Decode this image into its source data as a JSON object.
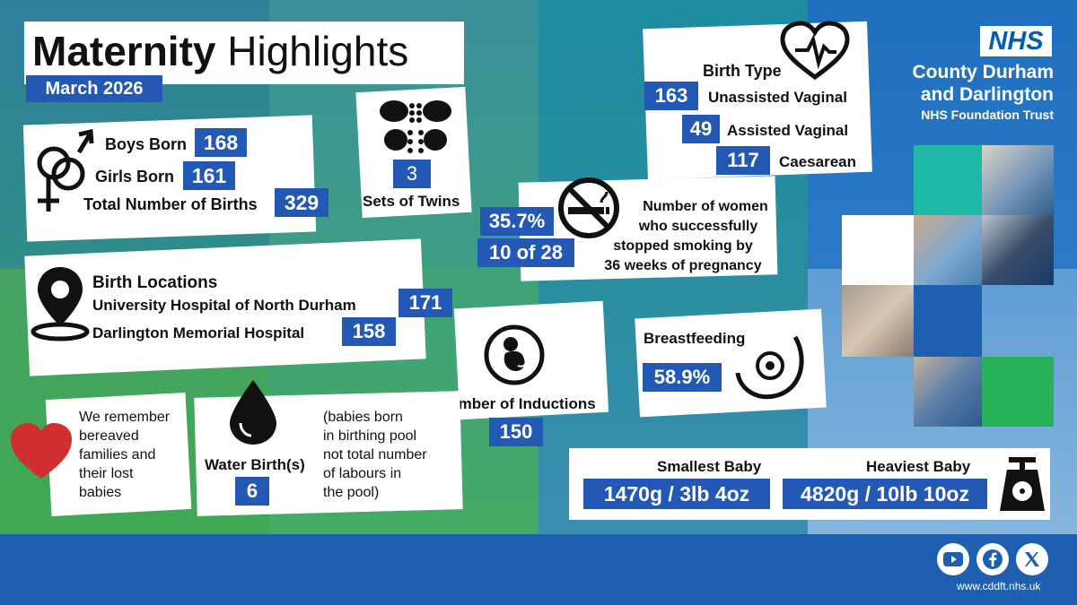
{
  "header": {
    "title_bold": "Maternity",
    "title_light": "Highlights",
    "date": "March 2026"
  },
  "births": {
    "boys_label": "Boys Born",
    "boys": "168",
    "girls_label": "Girls Born",
    "girls": "161",
    "total_label": "Total Number of Births",
    "total": "329",
    "icon": "gender-symbols-icon"
  },
  "twins": {
    "value": "3",
    "label": "Sets of Twins",
    "icon": "footprints-icon"
  },
  "birth_type": {
    "title": "Birth Type",
    "rows": [
      {
        "value": "163",
        "label": "Unassisted Vaginal"
      },
      {
        "value": "49",
        "label": "Assisted Vaginal"
      },
      {
        "value": "117",
        "label": "Caesarean"
      }
    ],
    "icon": "heartbeat-icon"
  },
  "org": {
    "logo": "NHS",
    "line1": "County Durham",
    "line2": "and Darlington",
    "line3": "NHS Foundation Trust"
  },
  "smoking": {
    "percent": "35.7%",
    "fraction": "10 of 28",
    "line1": "Number of women",
    "line2": "who successfully",
    "line3": "stopped smoking by",
    "line4": "36 weeks of pregnancy",
    "icon": "no-smoking-icon"
  },
  "locations": {
    "title": "Birth Locations",
    "rows": [
      {
        "label": "University Hospital of North Durham",
        "value": "171"
      },
      {
        "label": "Darlington Memorial Hospital",
        "value": "158"
      }
    ],
    "icon": "map-pin-icon"
  },
  "inductions": {
    "label": "Number of Inductions",
    "value": "150",
    "icon": "baby-in-womb-icon"
  },
  "breastfeeding": {
    "label": "Breastfeeding",
    "value": "58.9%",
    "icon": "breast-icon"
  },
  "remember": {
    "lines": [
      "We remember",
      "bereaved",
      "families and",
      "their lost",
      "babies"
    ],
    "icon": "heart-icon"
  },
  "water_birth": {
    "label": "Water Birth(s)",
    "value": "6",
    "note": [
      "(babies born",
      "in birthing pool",
      "not total number",
      "of labours in",
      "the pool)"
    ],
    "icon": "water-drop-icon"
  },
  "babies": {
    "smallest_label": "Smallest Baby",
    "smallest": "1470g / 3lb 4oz",
    "heaviest_label": "Heaviest Baby",
    "heaviest": "4820g / 10lb 10oz",
    "icon": "weighing-scale-icon"
  },
  "footer": {
    "url": "www.cddft.nhs.uk",
    "social": [
      "youtube-icon",
      "facebook-icon",
      "x-icon"
    ]
  },
  "colors": {
    "value_box": "#2359b5",
    "nhs_blue": "#005eb8",
    "heart_red": "#d12f2f",
    "footer": "#1f5fb0"
  }
}
